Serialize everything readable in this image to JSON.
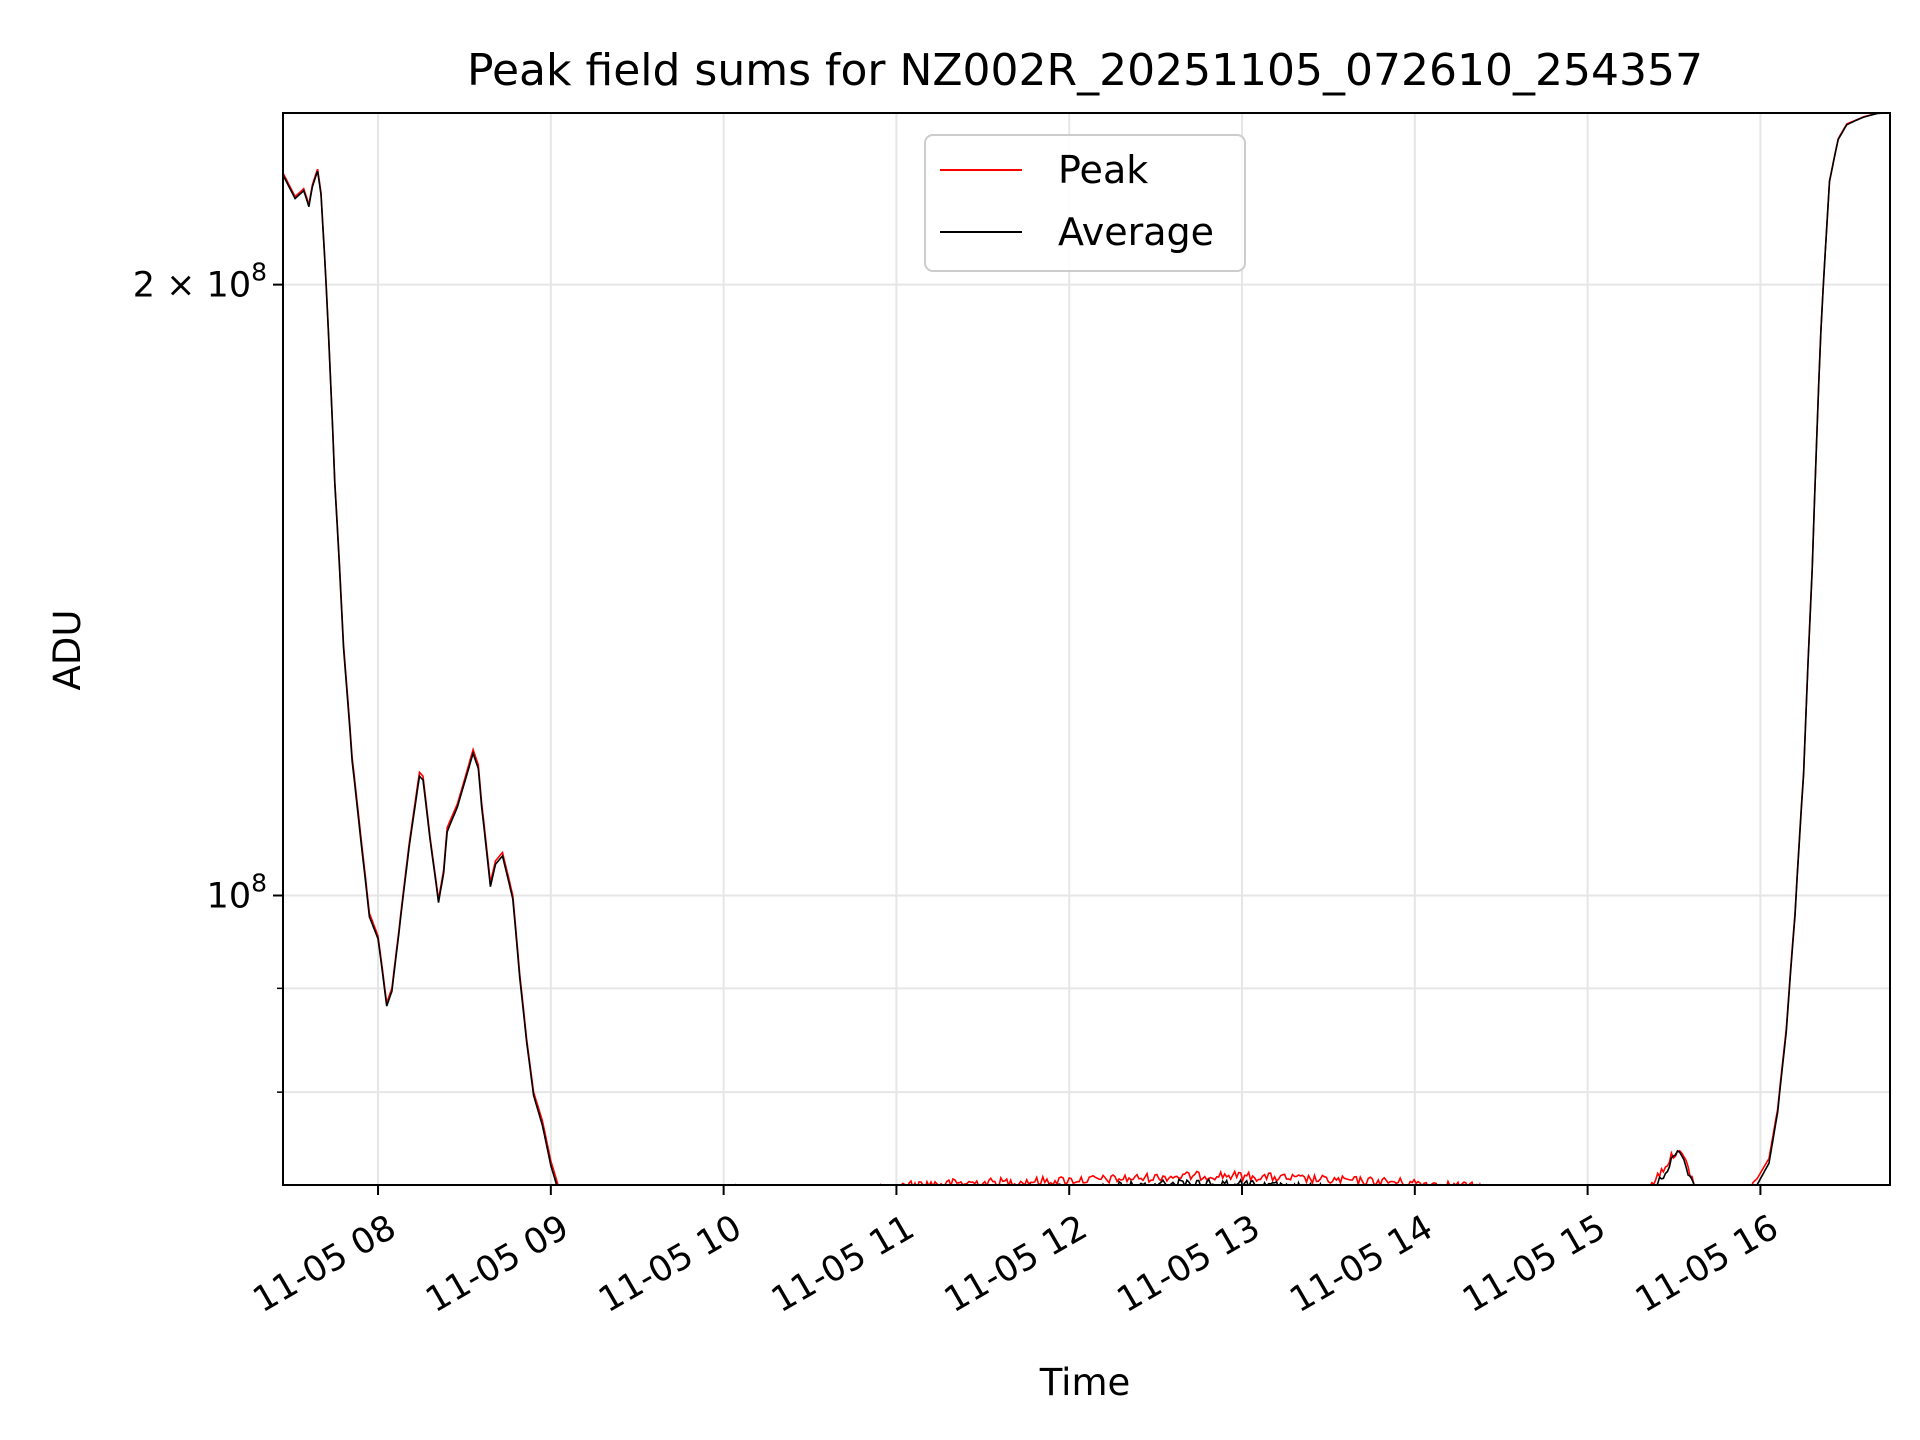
{
  "chart_data": {
    "type": "line",
    "title": "Peak field sums for NZ002R_20251105_072610_254357",
    "xlabel": "Time",
    "ylabel": "ADU",
    "y_scale": "log",
    "grid": true,
    "legend": {
      "placement": "top-center"
    },
    "x_range": [
      7.45,
      16.75
    ],
    "y_range": [
      72000000,
      243000000
    ],
    "x_ticks": [
      {
        "value": 8,
        "label": "11-05 08"
      },
      {
        "value": 9,
        "label": "11-05 09"
      },
      {
        "value": 10,
        "label": "11-05 10"
      },
      {
        "value": 11,
        "label": "11-05 11"
      },
      {
        "value": 12,
        "label": "11-05 12"
      },
      {
        "value": 13,
        "label": "11-05 13"
      },
      {
        "value": 14,
        "label": "11-05 14"
      },
      {
        "value": 15,
        "label": "11-05 15"
      },
      {
        "value": 16,
        "label": "11-05 16"
      }
    ],
    "y_major_ticks": [
      {
        "value": 100000000,
        "base": "10",
        "exp": "8",
        "mult": ""
      },
      {
        "value": 200000000,
        "base": "10",
        "exp": "8",
        "mult": "2 × "
      }
    ],
    "y_minor_ticks": [
      80000000,
      90000000
    ],
    "series": [
      {
        "name": "Peak",
        "color": "#ff0000",
        "x": [
          7.45,
          7.52,
          7.57,
          7.6,
          7.62,
          7.65,
          7.67,
          7.7,
          7.75,
          7.8,
          7.85,
          7.9,
          7.95,
          8.0,
          8.05,
          8.08,
          8.12,
          8.18,
          8.24,
          8.26,
          8.3,
          8.35,
          8.38,
          8.4,
          8.46,
          8.5,
          8.55,
          8.58,
          8.6,
          8.65,
          8.68,
          8.72,
          8.78,
          8.82,
          8.86,
          8.9,
          8.95,
          9.0,
          9.05,
          9.1,
          9.2,
          9.4,
          9.6,
          9.8,
          10.0,
          10.2,
          10.4,
          10.6,
          10.8,
          11.0,
          11.05,
          11.2,
          11.5,
          11.8,
          12.0,
          12.3,
          12.6,
          12.9,
          13.2,
          13.5,
          13.8,
          14.1,
          14.4,
          14.7,
          15.0,
          15.2,
          15.35,
          15.45,
          15.52,
          15.57,
          15.65,
          15.72,
          15.8,
          15.9,
          15.98,
          16.05,
          16.1,
          16.15,
          16.2,
          16.25,
          16.3,
          16.35,
          16.4,
          16.45,
          16.5,
          16.55,
          16.6,
          16.68,
          16.75
        ],
        "y": [
          227000000,
          221000000,
          223000000,
          219000000,
          224000000,
          228000000,
          222000000,
          200000000,
          160000000,
          133000000,
          117000000,
          107000000,
          98000000,
          95500000,
          88500000,
          90000000,
          96000000,
          106000000,
          115000000,
          114500000,
          107000000,
          99500000,
          103000000,
          108000000,
          111000000,
          114000000,
          118000000,
          116000000,
          111000000,
          101500000,
          104000000,
          105000000,
          100000000,
          91500000,
          85000000,
          80000000,
          77500000,
          74000000,
          71600000,
          70800000,
          70700000,
          70900000,
          71300000,
          71500000,
          71600000,
          71600000,
          71500000,
          71500000,
          71600000,
          71700000,
          72000000,
          72100000,
          72200000,
          72300000,
          72400000,
          72500000,
          72700000,
          72800000,
          72600000,
          72400000,
          72300000,
          72100000,
          71800000,
          71400000,
          71200000,
          71200000,
          71700000,
          73600000,
          75000000,
          73800000,
          71000000,
          70600000,
          70800000,
          71500000,
          72500000,
          74200000,
          78500000,
          86000000,
          98000000,
          115000000,
          145000000,
          190000000,
          225000000,
          236000000,
          240000000,
          241000000,
          242000000,
          243000000,
          243000000
        ]
      },
      {
        "name": "Average",
        "color": "#000000",
        "x": [
          7.45,
          7.52,
          7.57,
          7.6,
          7.62,
          7.65,
          7.67,
          7.7,
          7.75,
          7.8,
          7.85,
          7.9,
          7.95,
          8.0,
          8.05,
          8.08,
          8.12,
          8.18,
          8.24,
          8.26,
          8.3,
          8.35,
          8.38,
          8.4,
          8.46,
          8.5,
          8.55,
          8.58,
          8.6,
          8.65,
          8.68,
          8.72,
          8.78,
          8.82,
          8.86,
          8.9,
          8.95,
          9.0,
          9.05,
          9.1,
          9.2,
          9.4,
          9.6,
          9.8,
          10.0,
          10.2,
          10.4,
          10.6,
          10.8,
          11.0,
          11.05,
          11.2,
          11.5,
          11.8,
          12.0,
          12.3,
          12.6,
          12.9,
          13.2,
          13.5,
          13.8,
          14.1,
          14.4,
          14.7,
          15.0,
          15.2,
          15.35,
          15.45,
          15.52,
          15.57,
          15.65,
          15.72,
          15.8,
          15.9,
          15.98,
          16.05,
          16.1,
          16.15,
          16.2,
          16.25,
          16.3,
          16.35,
          16.4,
          16.45,
          16.5,
          16.55,
          16.6,
          16.68,
          16.75
        ],
        "y": [
          226500000,
          220500000,
          222500000,
          218500000,
          223500000,
          227500000,
          221500000,
          199500000,
          159500000,
          132500000,
          116500000,
          106500000,
          97600000,
          95200000,
          88200000,
          89700000,
          95700000,
          105600000,
          114500000,
          114000000,
          106700000,
          99200000,
          102600000,
          107500000,
          110600000,
          113600000,
          117500000,
          115500000,
          110500000,
          101000000,
          103600000,
          104600000,
          99600000,
          91100000,
          84700000,
          79700000,
          77100000,
          73600000,
          71200000,
          70400000,
          70300000,
          70500000,
          70800000,
          71000000,
          71000000,
          71000000,
          71000000,
          71000000,
          71000000,
          71100000,
          71300000,
          71400000,
          71600000,
          71700000,
          71800000,
          71900000,
          72100000,
          72100000,
          71900000,
          71700000,
          71500000,
          71300000,
          71000000,
          70600000,
          70400000,
          70400000,
          71000000,
          73100000,
          74700000,
          73400000,
          70500000,
          70100000,
          70300000,
          71000000,
          72000000,
          73800000,
          78200000,
          85700000,
          97700000,
          114700000,
          144700000,
          189700000,
          224800000,
          235800000,
          239800000,
          240900000,
          241900000,
          242900000,
          243000000
        ]
      }
    ]
  }
}
